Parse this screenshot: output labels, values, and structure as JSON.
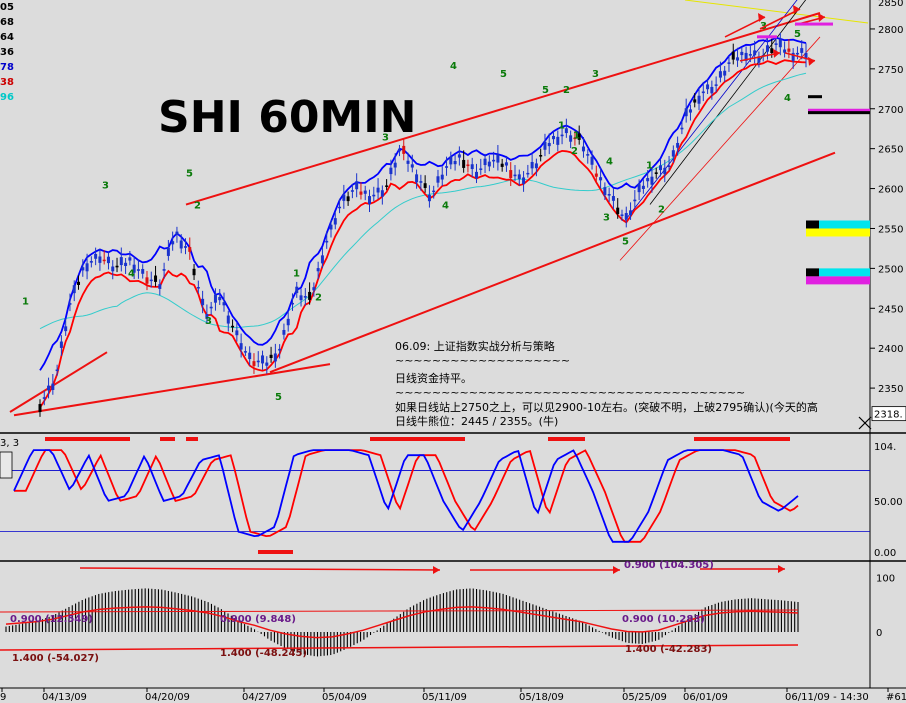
{
  "chart_data": [
    {
      "type": "candlestick",
      "title": "SHI 60MIN",
      "interval": "60MIN",
      "y_range": [
        2300,
        2830
      ],
      "y_ticks": [
        2350,
        2400,
        2450,
        2500,
        2550,
        2600,
        2650,
        2700,
        2750,
        2800
      ],
      "y_axis_top_label": "2850",
      "last_price_box": "2318.",
      "left_values": [
        {
          "text": "05",
          "color": "#000000"
        },
        {
          "text": "68",
          "color": "#000000"
        },
        {
          "text": "64",
          "color": "#000000"
        },
        {
          "text": "36",
          "color": "#000000"
        },
        {
          "text": "78",
          "color": "#0000cc"
        },
        {
          "text": "38",
          "color": "#cc0000"
        },
        {
          "text": "96",
          "color": "#00c8c8"
        }
      ],
      "approx_close_path": [
        2330,
        2360,
        2455,
        2505,
        2515,
        2500,
        2510,
        2490,
        2480,
        2545,
        2520,
        2440,
        2465,
        2420,
        2385,
        2380,
        2400,
        2470,
        2460,
        2530,
        2580,
        2600,
        2590,
        2600,
        2650,
        2620,
        2590,
        2625,
        2640,
        2620,
        2635,
        2630,
        2610,
        2630,
        2660,
        2670,
        2660,
        2620,
        2590,
        2560,
        2600,
        2620,
        2630,
        2690,
        2720,
        2730,
        2760,
        2770,
        2765,
        2780,
        2770,
        2770
      ],
      "series": [
        {
          "name": "price",
          "color": "#0000cc"
        },
        {
          "name": "upper band",
          "color": "#0000ff"
        },
        {
          "name": "lower band",
          "color": "#ff0000"
        },
        {
          "name": "long average",
          "color": "#33cccc"
        }
      ],
      "wave_labels": [
        "1",
        "3",
        "4",
        "5",
        "2",
        "3",
        "1",
        "2",
        "5",
        "1",
        "2",
        "3",
        "4",
        "5",
        "2",
        "1",
        "3",
        "5",
        "4",
        "1",
        "2",
        "3",
        "4",
        "5",
        "3",
        "5",
        "4"
      ],
      "right_blocks": [
        {
          "colors": [
            "#000000",
            "#ffff00",
            "#00e5ee"
          ]
        },
        {
          "colors": [
            "#000000",
            "#00e5ee",
            "#e020e0"
          ]
        }
      ],
      "annotations": [
        "06.09: 上证指数实战分析与策略",
        "~~~~~~~~~~~~~~~~~~~",
        "日线资金持平。",
        "~~~~~~~~~~~~~~~~~~~~~~~~~~~~~~~~~~~~~~",
        "如果日线站上2750之上，可以见2900-10左右。(突破不明，上破2795确认)(今天的高",
        "日线牛熊位：2445 / 2355。(牛)"
      ]
    },
    {
      "type": "line",
      "panel": "stochastic",
      "header": "3, 3",
      "y_ticks": [
        "104.",
        "50.00",
        "0.00"
      ],
      "series": [
        {
          "name": "K",
          "color": "#0000ff"
        },
        {
          "name": "D",
          "color": "#ff0000"
        }
      ],
      "approx_k": [
        60,
        100,
        100,
        60,
        95,
        50,
        55,
        95,
        50,
        55,
        90,
        95,
        20,
        15,
        25,
        95,
        100,
        100,
        100,
        95,
        40,
        95,
        95,
        50,
        20,
        50,
        90,
        100,
        35,
        90,
        100,
        60,
        10,
        10,
        40,
        90,
        100,
        100,
        100,
        95,
        50,
        40,
        55
      ]
    },
    {
      "type": "bar",
      "panel": "oscillator",
      "y_ticks": [
        "100",
        "0"
      ],
      "labels": [
        "0.900 (12.549)",
        "1.400 (-54.027)",
        "0.900 (9.848)",
        "1.400 (-48.245)",
        "0.900 (10.283)",
        "1.400 (-42.283)",
        "0.900 (104.305)"
      ],
      "approx_values": [
        10,
        15,
        20,
        30,
        45,
        60,
        70,
        75,
        78,
        80,
        78,
        72,
        65,
        55,
        40,
        20,
        5,
        -15,
        -30,
        -40,
        -45,
        -42,
        -30,
        -15,
        5,
        25,
        45,
        60,
        70,
        78,
        80,
        76,
        70,
        60,
        50,
        40,
        30,
        20,
        5,
        -10,
        -20,
        -22,
        -15,
        5,
        25,
        45,
        55,
        60,
        62,
        60,
        58,
        55
      ]
    }
  ],
  "time_axis": {
    "labels": [
      "9",
      "04/13/09",
      "04/20/09",
      "04/27/09",
      "05/04/09",
      "05/11/09",
      "05/18/09",
      "05/25/09",
      "06/01/09",
      "06/11/09 - 14:30",
      "#61"
    ]
  }
}
